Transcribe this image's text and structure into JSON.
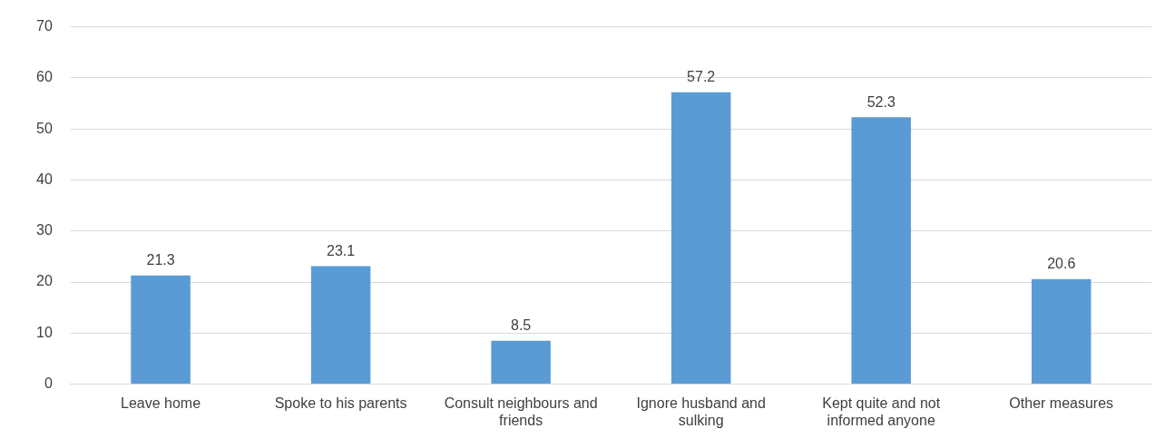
{
  "chart_data": {
    "type": "bar",
    "categories": [
      "Leave home",
      "Spoke to his parents",
      "Consult neighbours and friends",
      "Ignore husband and sulking",
      "Kept quite and not informed anyone",
      "Other measures"
    ],
    "values": [
      21.3,
      23.1,
      8.5,
      57.2,
      52.3,
      20.6
    ],
    "color": "#5b9bd5",
    "ylim": [
      0,
      70
    ],
    "yticks": [
      0,
      10,
      20,
      30,
      40,
      50,
      60,
      70
    ],
    "grid": "y",
    "data_labels": true,
    "legend": false
  }
}
